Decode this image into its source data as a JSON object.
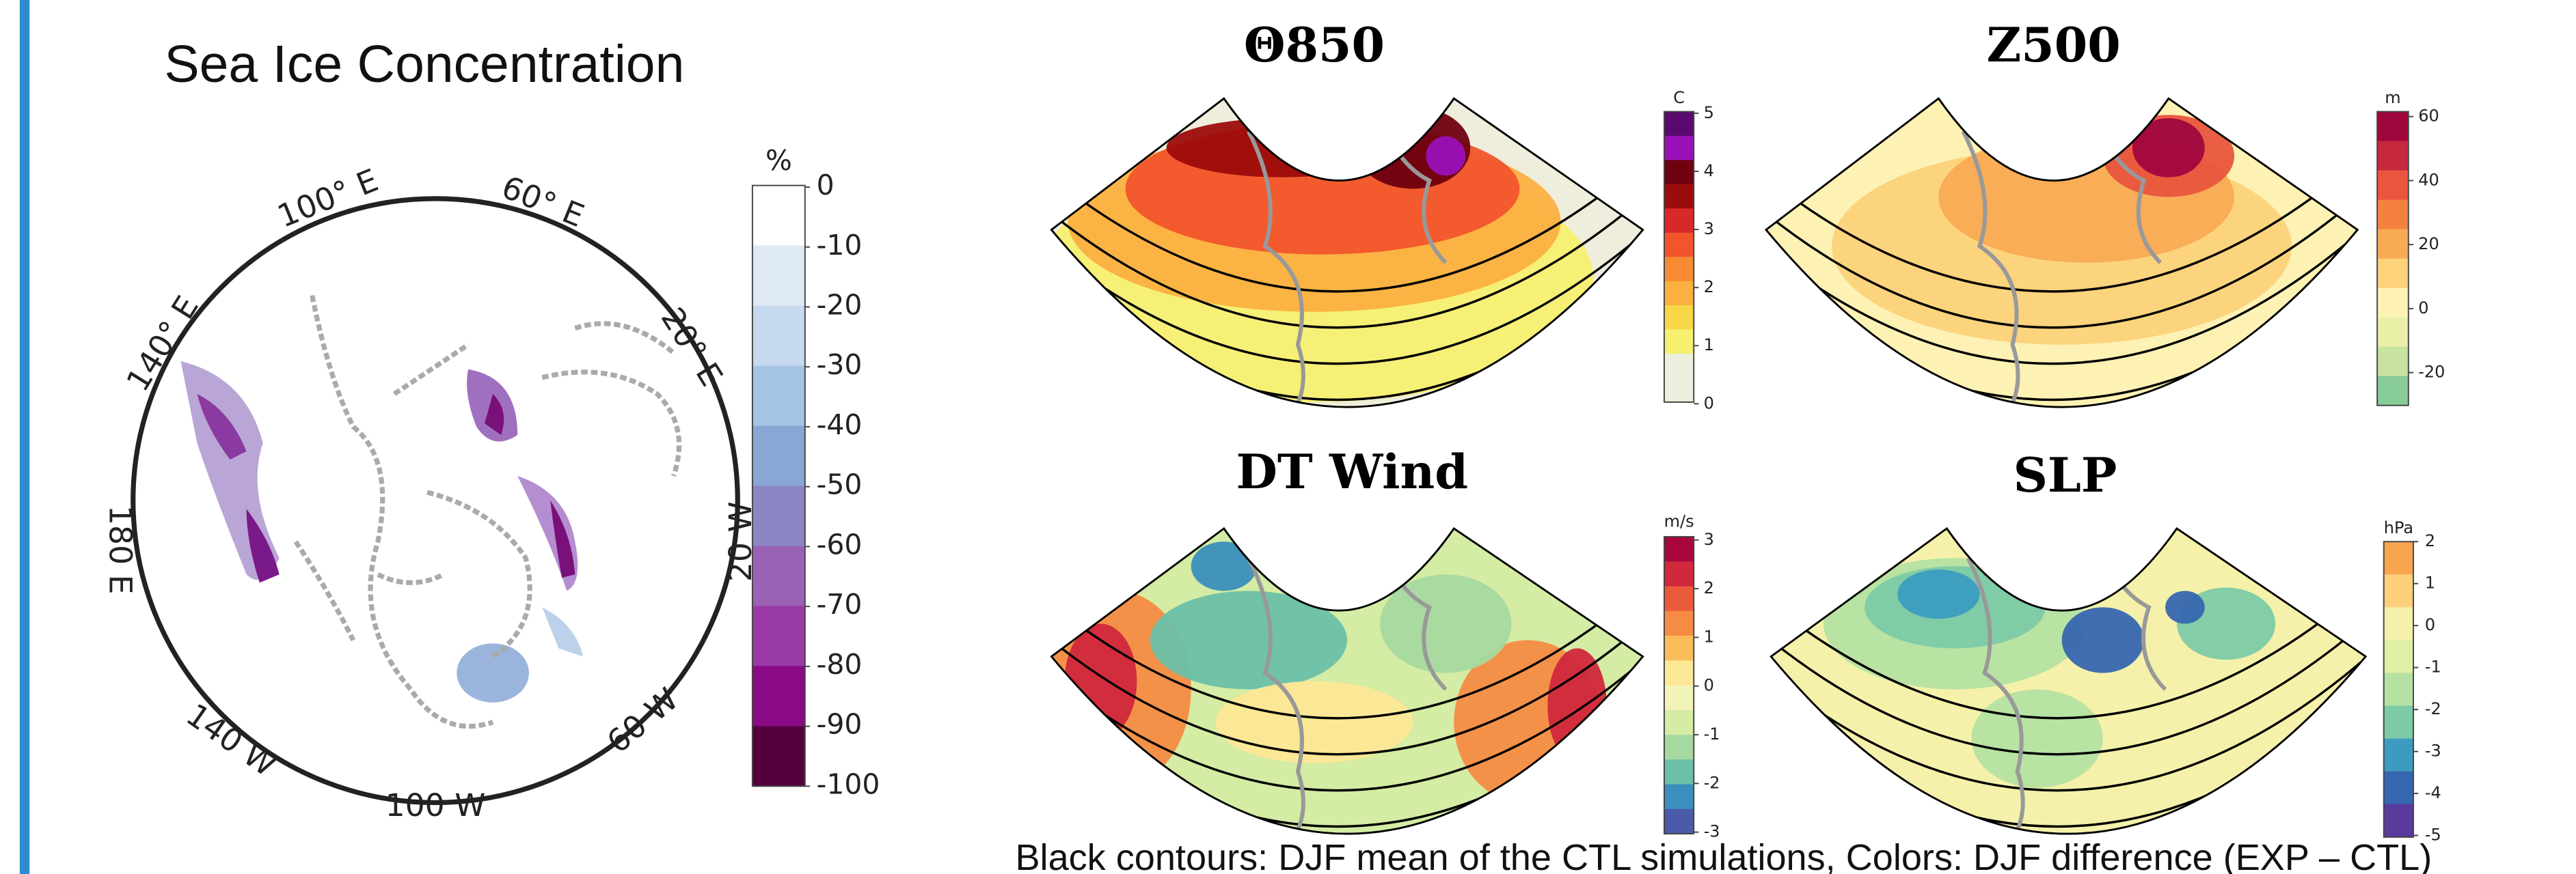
{
  "left_panel": {
    "title": "Sea Ice Concentration",
    "colorbar": {
      "unit": "%",
      "ticks": [
        "0",
        "-10",
        "-20",
        "-30",
        "-40",
        "-50",
        "-60",
        "-70",
        "-80",
        "-90",
        "-100"
      ],
      "colors": [
        "#ffffff",
        "#dfe9f4",
        "#c6d9ee",
        "#a6c4e3",
        "#8aa6d4",
        "#8a86c4",
        "#9a62b4",
        "#9a3aa6",
        "#8a0a86",
        "#54003f"
      ]
    },
    "longitude_labels": [
      "100° E",
      "60° E",
      "20° E",
      "140° E",
      "180 E",
      "20 W",
      "60 W",
      "140 W",
      "100 W"
    ]
  },
  "panels": [
    {
      "title": "Θ850",
      "colorbar": {
        "unit": "C",
        "ticks": [
          "5",
          "4",
          "3",
          "2",
          "1",
          "0"
        ],
        "colors": [
          "#5a0a6e",
          "#9a10b8",
          "#6e0010",
          "#9c0c0c",
          "#d8282a",
          "#f2552c",
          "#f78a32",
          "#fbb040",
          "#f8d848",
          "#f6f070",
          "#eeeedc",
          "#eeeedc"
        ]
      }
    },
    {
      "title": "Z500",
      "colorbar": {
        "unit": "m",
        "ticks": [
          "60",
          "40",
          "20",
          "0",
          "-20"
        ],
        "colors": [
          "#a0063e",
          "#c8283e",
          "#e9553e",
          "#f4823e",
          "#f9ab54",
          "#fcd27a",
          "#fdf2b4",
          "#eaf0a8",
          "#c8e2a0",
          "#88cc98"
        ]
      }
    },
    {
      "title": "DT Wind",
      "colorbar": {
        "unit": "m/s",
        "ticks": [
          "3",
          "2",
          "1",
          "0",
          "-1",
          "-2",
          "-3"
        ],
        "colors": [
          "#a8063e",
          "#d0283c",
          "#ec5a3c",
          "#f68c44",
          "#fbbd5a",
          "#fde896",
          "#f1f3b8",
          "#d4eca4",
          "#a6d9a0",
          "#6cc0a8",
          "#3a8fbd",
          "#4a5aa8"
        ]
      }
    },
    {
      "title": "SLP",
      "colorbar": {
        "unit": "hPa",
        "ticks": [
          "2",
          "1",
          "0",
          "-1",
          "-2",
          "-3",
          "-4",
          "-5"
        ],
        "colors": [
          "#f9a54e",
          "#fdd07c",
          "#f6f1aa",
          "#e0efa6",
          "#b5e1a2",
          "#7ccaa6",
          "#3b9cc0",
          "#3666b0",
          "#5a3a9c"
        ]
      }
    }
  ],
  "caption": "Black contours: DJF mean of the CTL simulations, Colors: DJF difference (EXP – CTL)"
}
